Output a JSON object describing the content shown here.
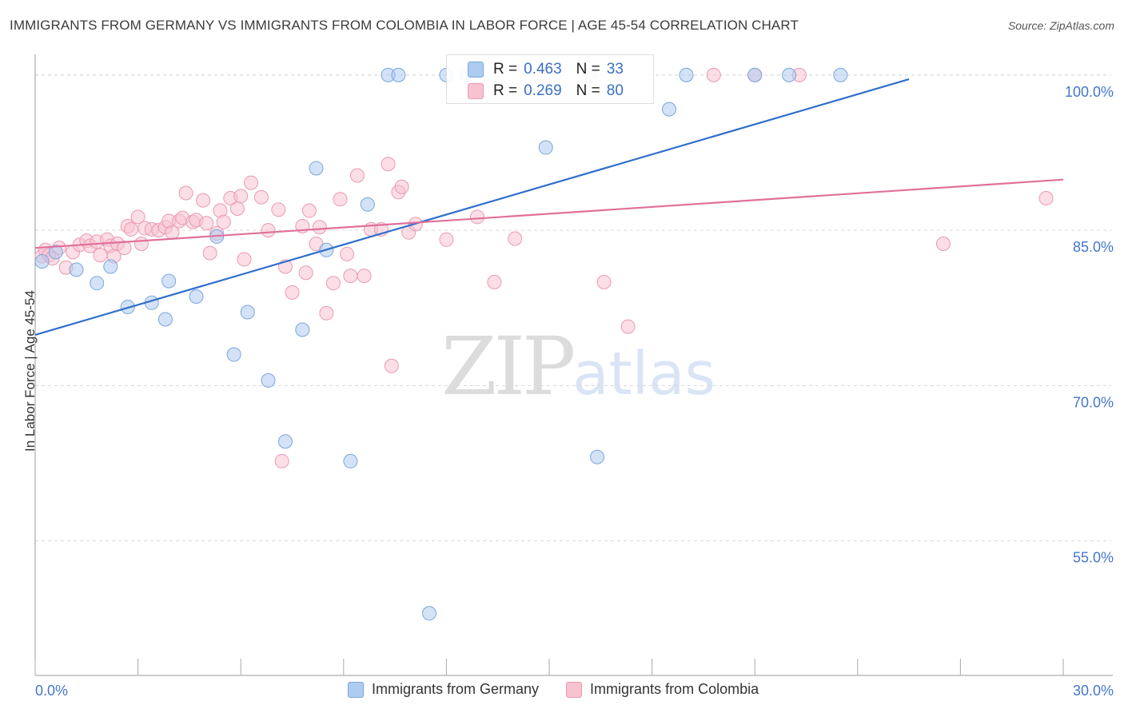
{
  "header": {
    "title": "IMMIGRANTS FROM GERMANY VS IMMIGRANTS FROM COLOMBIA IN LABOR FORCE | AGE 45-54 CORRELATION CHART",
    "source": "Source: ZipAtlas.com"
  },
  "watermark": {
    "zip": "ZIP",
    "atlas": "atlas"
  },
  "stats": {
    "germany": {
      "r_label": "R =",
      "r_value": "0.463",
      "n_label": "N =",
      "n_value": "33"
    },
    "colombia": {
      "r_label": "R =",
      "r_value": "0.269",
      "n_label": "N =",
      "n_value": "80"
    }
  },
  "colors": {
    "germany_fill": "#aecbf0",
    "germany_stroke": "#7ba6dc",
    "germany_line": "#2f6fcc",
    "colombia_fill": "#f7c3d1",
    "colombia_stroke": "#ea9ab2",
    "colombia_line": "#e0709a",
    "tick_label": "#4477cc",
    "grid": "#d8d8d8"
  },
  "chart_data": {
    "type": "scatter",
    "title": "IMMIGRANTS FROM GERMANY VS IMMIGRANTS FROM COLOMBIA IN LABOR FORCE | AGE 45-54 CORRELATION CHART",
    "xlabel": "",
    "ylabel": "In Labor Force | Age 45-54",
    "xlim": [
      0,
      30
    ],
    "ylim": [
      42,
      102
    ],
    "x_tick_labels": [
      "0.0%",
      "30.0%"
    ],
    "y_ticks": [
      55,
      70,
      85,
      100
    ],
    "y_tick_labels": [
      "55.0%",
      "70.0%",
      "85.0%",
      "100.0%"
    ],
    "grid": true,
    "legend_position": "bottom",
    "series": [
      {
        "name": "Immigrants from Germany",
        "color": "#aecbf0",
        "points": [
          [
            0.2,
            82.0
          ],
          [
            0.6,
            82.9
          ],
          [
            1.2,
            81.2
          ],
          [
            1.8,
            79.9
          ],
          [
            2.2,
            81.5
          ],
          [
            2.7,
            77.6
          ],
          [
            3.4,
            78.0
          ],
          [
            3.8,
            76.4
          ],
          [
            3.9,
            80.1
          ],
          [
            4.7,
            78.6
          ],
          [
            5.3,
            84.4
          ],
          [
            5.8,
            73.0
          ],
          [
            6.2,
            77.1
          ],
          [
            6.8,
            70.5
          ],
          [
            7.3,
            64.6
          ],
          [
            7.8,
            75.4
          ],
          [
            8.2,
            91.0
          ],
          [
            8.5,
            83.1
          ],
          [
            9.2,
            62.7
          ],
          [
            9.7,
            87.5
          ],
          [
            10.3,
            100.0
          ],
          [
            10.6,
            100.0
          ],
          [
            11.5,
            48.0
          ],
          [
            12.0,
            100.0
          ],
          [
            12.6,
            100.0
          ],
          [
            14.9,
            93.0
          ],
          [
            16.2,
            100.0
          ],
          [
            16.4,
            63.1
          ],
          [
            18.5,
            96.7
          ],
          [
            19.0,
            100.0
          ],
          [
            21.0,
            100.0
          ],
          [
            22.0,
            100.0
          ],
          [
            23.5,
            100.0
          ]
        ],
        "trend": [
          [
            0,
            74.9
          ],
          [
            25.5,
            99.6
          ]
        ]
      },
      {
        "name": "Immigrants from Colombia",
        "color": "#f7c3d1",
        "points": [
          [
            0.2,
            82.5
          ],
          [
            0.3,
            83.1
          ],
          [
            0.4,
            82.6
          ],
          [
            0.7,
            83.3
          ],
          [
            0.9,
            81.4
          ],
          [
            1.1,
            82.9
          ],
          [
            1.3,
            83.6
          ],
          [
            1.5,
            84.0
          ],
          [
            1.6,
            83.5
          ],
          [
            1.8,
            83.9
          ],
          [
            1.9,
            82.6
          ],
          [
            2.1,
            84.1
          ],
          [
            2.2,
            83.5
          ],
          [
            2.3,
            82.5
          ],
          [
            2.4,
            83.7
          ],
          [
            2.6,
            83.3
          ],
          [
            2.7,
            85.4
          ],
          [
            2.8,
            85.1
          ],
          [
            3.0,
            86.3
          ],
          [
            3.1,
            83.7
          ],
          [
            3.2,
            85.2
          ],
          [
            3.4,
            85.1
          ],
          [
            3.6,
            85.0
          ],
          [
            3.8,
            85.3
          ],
          [
            3.9,
            85.9
          ],
          [
            4.0,
            84.8
          ],
          [
            4.2,
            85.9
          ],
          [
            4.3,
            86.2
          ],
          [
            4.4,
            88.6
          ],
          [
            4.6,
            85.8
          ],
          [
            4.7,
            86.0
          ],
          [
            4.9,
            87.9
          ],
          [
            5.0,
            85.7
          ],
          [
            5.1,
            82.8
          ],
          [
            5.3,
            84.7
          ],
          [
            5.4,
            86.9
          ],
          [
            5.5,
            85.8
          ],
          [
            5.7,
            88.1
          ],
          [
            5.9,
            87.1
          ],
          [
            6.0,
            88.3
          ],
          [
            6.1,
            82.2
          ],
          [
            6.3,
            89.6
          ],
          [
            6.6,
            88.2
          ],
          [
            6.8,
            85.0
          ],
          [
            7.1,
            87.0
          ],
          [
            7.3,
            81.5
          ],
          [
            7.5,
            79.0
          ],
          [
            7.8,
            85.4
          ],
          [
            7.9,
            80.9
          ],
          [
            8.0,
            86.9
          ],
          [
            8.2,
            83.7
          ],
          [
            8.3,
            85.3
          ],
          [
            8.5,
            77.0
          ],
          [
            8.7,
            79.9
          ],
          [
            8.9,
            88.0
          ],
          [
            9.1,
            82.7
          ],
          [
            9.2,
            80.6
          ],
          [
            9.4,
            90.3
          ],
          [
            9.6,
            80.6
          ],
          [
            9.8,
            85.1
          ],
          [
            10.1,
            85.1
          ],
          [
            10.3,
            91.4
          ],
          [
            10.4,
            71.9
          ],
          [
            10.6,
            88.7
          ],
          [
            10.7,
            89.2
          ],
          [
            10.9,
            84.8
          ],
          [
            11.1,
            85.6
          ],
          [
            12.0,
            84.1
          ],
          [
            12.9,
            86.3
          ],
          [
            13.4,
            80.0
          ],
          [
            14.0,
            84.2
          ],
          [
            16.6,
            80.0
          ],
          [
            17.3,
            75.7
          ],
          [
            19.8,
            100.0
          ],
          [
            21.0,
            100.0
          ],
          [
            22.3,
            100.0
          ],
          [
            7.2,
            62.7
          ],
          [
            26.5,
            83.7
          ],
          [
            29.5,
            88.1
          ],
          [
            0.5,
            82.3
          ]
        ],
        "trend": [
          [
            0,
            83.3
          ],
          [
            30,
            89.9
          ]
        ]
      }
    ]
  },
  "legend": {
    "germany_label": "Immigrants from Germany",
    "colombia_label": "Immigrants from Colombia"
  }
}
